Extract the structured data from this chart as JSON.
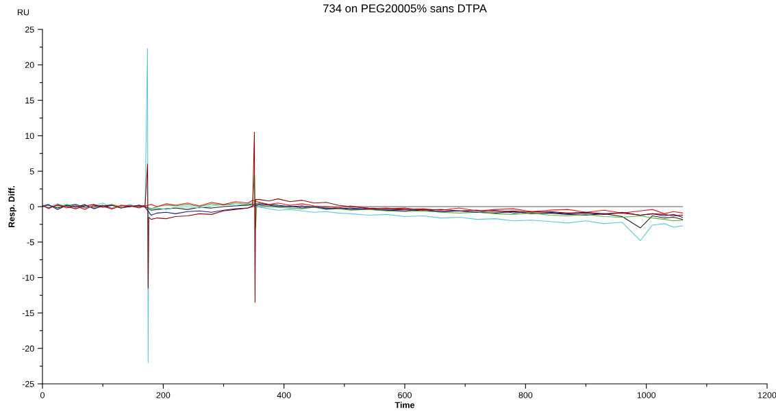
{
  "chart_data": {
    "type": "line",
    "title": "734 on PEG20005% sans DTPA",
    "xlabel": "Time",
    "ylabel": "Resp. Diff.",
    "annotations": [
      "RU"
    ],
    "grid": false,
    "legend": false,
    "marker": "none",
    "line_style": "solid",
    "xlim": [
      0,
      1200
    ],
    "ylim": [
      -25,
      25
    ],
    "xticks": [
      0,
      {
        "value": 100,
        "label": null
      },
      200,
      {
        "value": 300,
        "label": null
      },
      400,
      {
        "value": 500,
        "label": null
      },
      600,
      {
        "value": 700,
        "label": null
      },
      800,
      {
        "value": 900,
        "label": null
      },
      1000,
      {
        "value": 1100,
        "label": null
      },
      1200
    ],
    "yticks": [
      -25,
      {
        "value": -22.5,
        "label": null
      },
      -20,
      {
        "value": -17.5,
        "label": null
      },
      -15,
      {
        "value": -12.5,
        "label": null
      },
      -10,
      {
        "value": -7.5,
        "label": null
      },
      -5,
      {
        "value": -2.5,
        "label": null
      },
      0,
      {
        "value": 2.5,
        "label": null
      },
      5,
      {
        "value": 7.5,
        "label": null
      },
      10,
      {
        "value": 12.5,
        "label": null
      },
      15,
      {
        "value": 17.5,
        "label": null
      },
      20,
      {
        "value": 22.5,
        "label": null
      },
      25
    ],
    "x": [
      0,
      10,
      25,
      40,
      55,
      70,
      85,
      100,
      115,
      130,
      145,
      160,
      170,
      180,
      190,
      205,
      220,
      240,
      260,
      280,
      300,
      320,
      340,
      348,
      360,
      375,
      390,
      410,
      430,
      450,
      470,
      490,
      510,
      540,
      570,
      600,
      630,
      660,
      690,
      720,
      750,
      780,
      810,
      840,
      870,
      900,
      930,
      960,
      990,
      1010,
      1030,
      1045,
      1060
    ],
    "series": [
      {
        "color": "#505070",
        "x": [
          350,
          1060
        ],
        "values": [
          0,
          0
        ]
      },
      {
        "color": "#202020",
        "values": [
          0.0,
          0.2,
          -0.2,
          0.1,
          0.3,
          -0.1,
          0.0,
          0.2,
          -0.3,
          0.1,
          0.0,
          0.2,
          0.0,
          -0.5,
          -0.4,
          -0.3,
          -0.2,
          -0.4,
          -0.1,
          -0.2,
          0.0,
          0.1,
          0.2,
          0.3,
          0.5,
          0.3,
          0.2,
          0.0,
          0.1,
          -0.1,
          -0.2,
          -0.3,
          -0.2,
          -0.4,
          -0.5,
          -0.4,
          -0.6,
          -0.7,
          -0.6,
          -0.8,
          -0.9,
          -0.7,
          -1.0,
          -0.9,
          -1.1,
          -1.2,
          -1.0,
          -1.4,
          -3.0,
          -1.3,
          -1.6,
          -1.5,
          -1.8
        ]
      },
      {
        "color": "#5bc8dc",
        "x": [
          0,
          10,
          25,
          40,
          55,
          70,
          85,
          100,
          115,
          130,
          145,
          160,
          170,
          174,
          175,
          176,
          180,
          190,
          205,
          220,
          240,
          260,
          280,
          300,
          320,
          340,
          348,
          360,
          375,
          390,
          410,
          430,
          450,
          470,
          490,
          510,
          540,
          570,
          600,
          630,
          660,
          690,
          720,
          750,
          780,
          810,
          840,
          870,
          900,
          930,
          960,
          990,
          1010,
          1030,
          1045,
          1060
        ],
        "values": [
          0.2,
          -0.1,
          0.4,
          0.0,
          0.2,
          -0.3,
          0.1,
          0.5,
          -0.2,
          0.0,
          0.3,
          -0.1,
          0.1,
          22.3,
          -22.0,
          -0.5,
          -0.3,
          -0.2,
          -0.4,
          -0.1,
          0.0,
          -0.2,
          0.1,
          0.3,
          0.2,
          0.4,
          0.6,
          -0.1,
          -0.3,
          -0.5,
          -0.4,
          -0.6,
          -0.8,
          -0.7,
          -0.9,
          -1.0,
          -1.2,
          -1.1,
          -1.4,
          -1.3,
          -1.6,
          -1.5,
          -1.8,
          -1.7,
          -2.0,
          -1.9,
          -2.1,
          -2.3,
          -2.0,
          -2.4,
          -2.2,
          -4.8,
          -2.6,
          -2.4,
          -2.9,
          -2.7
        ]
      },
      {
        "color": "#50b43c",
        "x": [
          0,
          10,
          25,
          40,
          55,
          70,
          85,
          100,
          115,
          130,
          145,
          160,
          170,
          180,
          190,
          205,
          220,
          240,
          260,
          280,
          300,
          320,
          340,
          348,
          351,
          353,
          355,
          360,
          375,
          390,
          410,
          430,
          450,
          470,
          490,
          510,
          540,
          570,
          600,
          630,
          660,
          690,
          720,
          750,
          780,
          810,
          840,
          870,
          900,
          930,
          960,
          990,
          1010,
          1030,
          1045,
          1060
        ],
        "values": [
          0.0,
          0.2,
          -0.1,
          0.3,
          0.0,
          0.2,
          -0.2,
          0.1,
          0.3,
          0.0,
          0.2,
          -0.1,
          0.1,
          -0.3,
          0.0,
          0.2,
          0.1,
          0.3,
          0.0,
          0.4,
          0.2,
          0.5,
          0.3,
          0.4,
          4.5,
          -3.0,
          0.5,
          0.2,
          0.0,
          -0.1,
          -0.2,
          -0.3,
          -0.1,
          -0.4,
          -0.3,
          -0.5,
          -0.4,
          -0.6,
          -0.7,
          -0.6,
          -0.8,
          -0.9,
          -0.8,
          -1.0,
          -1.1,
          -0.9,
          -1.2,
          -1.3,
          -1.1,
          -1.4,
          -1.5,
          -1.3,
          -1.6,
          -1.8,
          -2.0,
          -1.9
        ]
      },
      {
        "color": "#1a1a80",
        "values": [
          0.1,
          0.3,
          -0.4,
          0.2,
          -0.1,
          0.3,
          -0.3,
          0.1,
          0.2,
          -0.2,
          0.0,
          0.2,
          -0.1,
          -1.2,
          -0.9,
          -0.8,
          -1.0,
          -0.7,
          -0.6,
          -0.8,
          -0.5,
          -0.3,
          -0.2,
          0.1,
          0.3,
          0.2,
          0.0,
          0.1,
          -0.2,
          0.0,
          -0.3,
          -0.2,
          -0.4,
          -0.3,
          -0.5,
          -0.6,
          -0.4,
          -0.7,
          -0.6,
          -0.8,
          -0.5,
          -0.9,
          -0.7,
          -0.8,
          -1.0,
          -0.9,
          -1.1,
          -0.8,
          -1.2,
          -1.0,
          -1.3,
          -1.1,
          -1.5
        ]
      },
      {
        "color": "#e8141e",
        "values": [
          0.2,
          -0.3,
          0.3,
          -0.2,
          0.1,
          -0.4,
          0.2,
          0.0,
          -0.3,
          0.2,
          0.1,
          -0.2,
          0.1,
          0.3,
          0.0,
          0.4,
          0.2,
          0.5,
          0.1,
          0.6,
          0.3,
          0.7,
          0.5,
          0.9,
          0.6,
          0.3,
          0.5,
          0.2,
          0.4,
          0.1,
          0.0,
          -0.2,
          0.1,
          -0.3,
          -0.2,
          -0.4,
          -0.3,
          -0.5,
          -0.2,
          -0.6,
          -0.4,
          -0.3,
          -0.7,
          -0.5,
          -0.4,
          -0.8,
          -0.5,
          -0.9,
          -0.6,
          -0.4,
          -1.0,
          -0.7,
          -0.9
        ]
      },
      {
        "color": "#8b0a0a",
        "x": [
          0,
          10,
          25,
          40,
          55,
          70,
          85,
          100,
          115,
          130,
          145,
          160,
          170,
          174,
          175,
          176,
          180,
          190,
          205,
          220,
          240,
          260,
          280,
          300,
          320,
          340,
          348,
          351,
          352,
          353,
          360,
          375,
          390,
          410,
          430,
          450,
          470,
          490,
          510,
          540,
          570,
          600,
          630,
          660,
          690,
          720,
          750,
          780,
          810,
          840,
          870,
          900,
          930,
          960,
          990,
          1010,
          1030,
          1045,
          1060
        ],
        "values": [
          0.1,
          -0.2,
          0.2,
          0.0,
          -0.3,
          0.1,
          0.3,
          -0.1,
          0.2,
          -0.2,
          0.1,
          0.0,
          0.2,
          6.0,
          -11.5,
          -1.5,
          -1.8,
          -1.6,
          -1.7,
          -1.4,
          -1.3,
          -1.0,
          -1.1,
          -0.6,
          -0.4,
          -0.2,
          0.0,
          10.5,
          -13.5,
          1.0,
          1.0,
          0.8,
          1.1,
          0.7,
          0.9,
          0.5,
          0.6,
          0.2,
          0.0,
          -0.2,
          -0.3,
          -0.2,
          -0.5,
          -0.4,
          -0.6,
          -0.5,
          -0.7,
          -0.6,
          -0.8,
          -0.7,
          -0.9,
          -0.8,
          -1.0,
          -0.9,
          -1.2,
          -1.0,
          -1.1,
          -1.3,
          -1.2
        ]
      }
    ]
  }
}
